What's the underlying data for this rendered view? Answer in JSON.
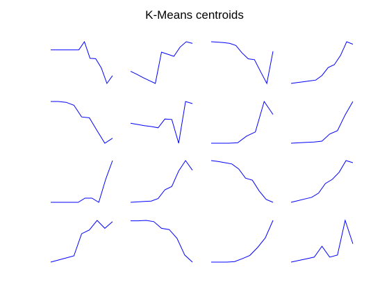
{
  "chart_data": {
    "type": "line",
    "title": "K-Means centroids",
    "layout": {
      "rows": 4,
      "cols": 4
    },
    "axes_visible": false,
    "grid": false,
    "line_color": "#0000ff",
    "panels": [
      {
        "x": [
          0,
          1,
          2,
          3,
          4,
          5,
          6,
          7,
          8,
          9,
          10,
          11
        ],
        "y": [
          0.76,
          0.76,
          0.76,
          0.76,
          0.76,
          0.76,
          1.0,
          0.51,
          0.5,
          0.23,
          -0.23,
          0.0
        ]
      },
      {
        "x": [
          0,
          1,
          2,
          3,
          4,
          5,
          6,
          7,
          8,
          9,
          10,
          11
        ],
        "y": [
          0.29,
          0.22,
          0.14,
          0.07,
          0.0,
          0.75,
          0.7,
          0.65,
          0.87,
          1.0,
          0.96,
          0.96
        ]
      },
      {
        "x": [
          0,
          1,
          2,
          3,
          4,
          5,
          6,
          7,
          8,
          9,
          10,
          11
        ],
        "y": [
          1.0,
          0.99,
          0.98,
          0.96,
          0.91,
          0.73,
          0.59,
          0.57,
          0.28,
          0.0,
          0.77,
          0.77
        ]
      },
      {
        "x": [
          0,
          1,
          2,
          3,
          4,
          5,
          6,
          7,
          8,
          9,
          10,
          11
        ],
        "y": [
          0.0,
          0.02,
          0.04,
          0.06,
          0.08,
          0.19,
          0.38,
          0.45,
          0.67,
          1.0,
          0.94,
          0.94
        ]
      },
      {
        "x": [
          0,
          1,
          2,
          3,
          4,
          5,
          6,
          7,
          8,
          9,
          10,
          11
        ],
        "y": [
          1.0,
          1.0,
          0.98,
          0.91,
          0.63,
          0.61,
          0.3,
          0.0,
          0.12,
          0.12,
          0.12,
          0.12
        ]
      },
      {
        "x": [
          0,
          1,
          2,
          3,
          4,
          5,
          6,
          7,
          8,
          9,
          10,
          11
        ],
        "y": [
          0.48,
          0.45,
          0.42,
          0.4,
          0.37,
          0.58,
          0.57,
          0.0,
          1.0,
          0.95,
          0.95,
          0.95
        ]
      },
      {
        "x": [
          0,
          1,
          2,
          3,
          4,
          5,
          6,
          7,
          8,
          9,
          10,
          11
        ],
        "y": [
          0.0,
          0.0,
          0.0,
          0.01,
          0.17,
          0.27,
          1.0,
          0.69,
          0.69,
          0.69,
          0.69,
          0.69
        ]
      },
      {
        "x": [
          0,
          1,
          2,
          3,
          4,
          5,
          6,
          7,
          8,
          9,
          10,
          11
        ],
        "y": [
          0.0,
          0.01,
          0.02,
          0.03,
          0.05,
          0.22,
          0.3,
          0.68,
          1.0,
          1.0,
          1.0,
          1.0
        ]
      },
      {
        "x": [
          0,
          1,
          2,
          3,
          4,
          5,
          6,
          7,
          8,
          9,
          10,
          11
        ],
        "y": [
          0.0,
          0.0,
          0.0,
          0.0,
          0.0,
          0.1,
          0.1,
          0.0,
          0.55,
          1.0,
          1.0,
          1.0
        ]
      },
      {
        "x": [
          0,
          1,
          2,
          3,
          4,
          5,
          6,
          7,
          8,
          9,
          10,
          11
        ],
        "y": [
          0.0,
          0.01,
          0.02,
          0.03,
          0.09,
          0.3,
          0.38,
          0.75,
          1.0,
          0.77,
          0.77,
          0.77
        ]
      },
      {
        "x": [
          0,
          1,
          2,
          3,
          4,
          5,
          6,
          7,
          8,
          9,
          10,
          11
        ],
        "y": [
          1.0,
          0.98,
          0.95,
          0.92,
          0.8,
          0.58,
          0.53,
          0.27,
          0.07,
          0.0,
          0.0,
          0.0
        ]
      },
      {
        "x": [
          0,
          1,
          2,
          3,
          4,
          5,
          6,
          7,
          8,
          9,
          10,
          11
        ],
        "y": [
          0.0,
          0.04,
          0.08,
          0.12,
          0.22,
          0.45,
          0.55,
          0.72,
          1.0,
          0.95,
          0.95,
          0.95
        ]
      },
      {
        "x": [
          0,
          1,
          2,
          3,
          4,
          5,
          6,
          7,
          8,
          9,
          10,
          11
        ],
        "y": [
          0.0,
          0.05,
          0.1,
          0.15,
          0.68,
          0.77,
          1.0,
          0.81,
          0.97,
          0.97,
          0.97,
          0.97
        ]
      },
      {
        "x": [
          0,
          1,
          2,
          3,
          4,
          5,
          6,
          7,
          8,
          9,
          10,
          11
        ],
        "y": [
          0.99,
          0.99,
          1.0,
          0.97,
          0.81,
          0.78,
          0.57,
          0.17,
          0.0,
          0.0,
          0.0,
          0.0
        ]
      },
      {
        "x": [
          0,
          1,
          2,
          3,
          4,
          5,
          6,
          7,
          8,
          9,
          10,
          11
        ],
        "y": [
          0.0,
          0.0,
          0.0,
          0.01,
          0.08,
          0.16,
          0.35,
          0.58,
          1.0,
          1.0,
          1.0,
          1.0
        ]
      },
      {
        "x": [
          0,
          1,
          2,
          3,
          4,
          5,
          6,
          7,
          8,
          9,
          10,
          11
        ],
        "y": [
          0.0,
          0.04,
          0.08,
          0.12,
          0.38,
          0.12,
          0.17,
          1.0,
          0.44,
          0.44,
          0.44,
          0.44
        ]
      }
    ]
  }
}
